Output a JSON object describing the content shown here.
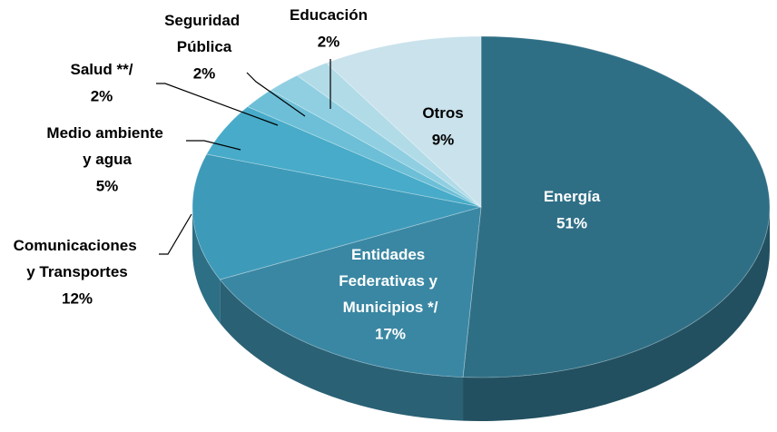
{
  "chart_data": {
    "type": "pie3d",
    "categories": [
      "Energía",
      "Entidades Federativas y Municipios */",
      "Comunicaciones y Transportes",
      "Medio ambiente y agua",
      "Salud **/",
      "Seguridad Pública",
      "Educación",
      "Otros"
    ],
    "values": [
      51,
      17,
      12,
      5,
      2,
      2,
      2,
      9
    ],
    "value_labels": [
      "51%",
      "17%",
      "12%",
      "5%",
      "2%",
      "2%",
      "2%",
      "9%"
    ],
    "colors": [
      "#2f6f86",
      "#3a87a3",
      "#3e9ab9",
      "#47abc9",
      "#6cbfd6",
      "#8fcfe1",
      "#b2dbe8",
      "#c9e2ec"
    ]
  }
}
